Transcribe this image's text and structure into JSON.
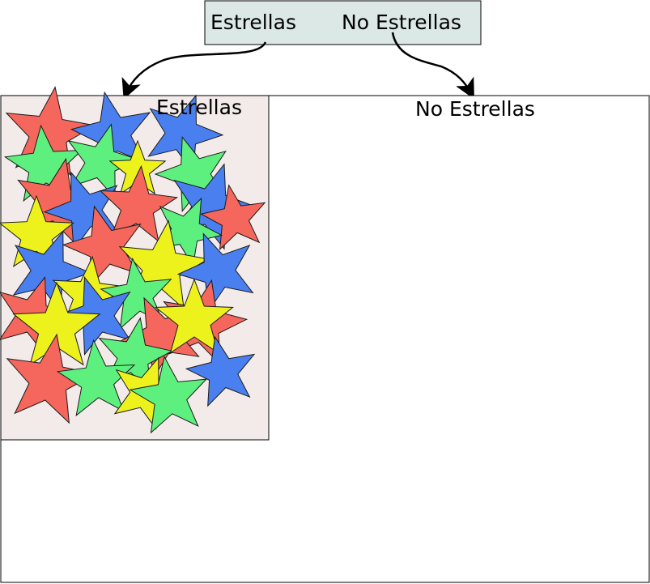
{
  "header_box": {
    "left_label": "Estrellas",
    "right_label": "No Estrellas",
    "fill": "#dce8e6"
  },
  "panels": {
    "stars_label": "Estrellas",
    "stars_fill": "#f3ebe9",
    "no_stars_label": "No Estrellas"
  },
  "star_colors": {
    "red": "#f5665c",
    "blue": "#4a7ff0",
    "green": "#5ef07f",
    "yellow": "#eef21c"
  }
}
